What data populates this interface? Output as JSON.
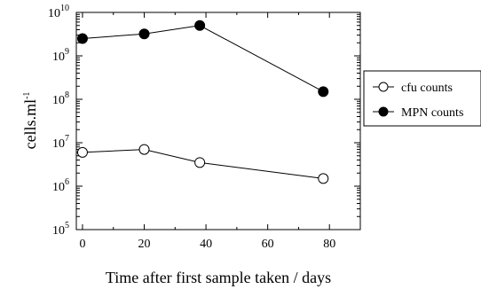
{
  "chart_data": {
    "type": "line",
    "title": "",
    "xlabel": "Time after first sample taken / days",
    "ylabel": "cells.ml",
    "ylabel_superscript": "-1",
    "xlim": [
      -2,
      90
    ],
    "ylim": [
      100000,
      10000000000
    ],
    "yscale": "log",
    "x_ticks": [
      0,
      20,
      40,
      60,
      80
    ],
    "x_tick_labels": [
      "0",
      "20",
      "40",
      "60",
      "80"
    ],
    "y_ticks": [
      5,
      6,
      7,
      8,
      9,
      10
    ],
    "y_tick_base": "10",
    "y_tick_exponents": [
      "5",
      "6",
      "7",
      "8",
      "9",
      "10"
    ],
    "grid": false,
    "legend_position": "right",
    "series": [
      {
        "name": "cfu counts",
        "marker": "open-circle",
        "color": "#000000",
        "x": [
          0,
          20,
          38,
          78
        ],
        "y": [
          6000000,
          7000000,
          3500000,
          1500000
        ]
      },
      {
        "name": "MPN counts",
        "marker": "filled-circle",
        "color": "#000000",
        "x": [
          0,
          20,
          38,
          78
        ],
        "y": [
          2500000000,
          3200000000,
          5000000000,
          150000000
        ]
      }
    ]
  }
}
